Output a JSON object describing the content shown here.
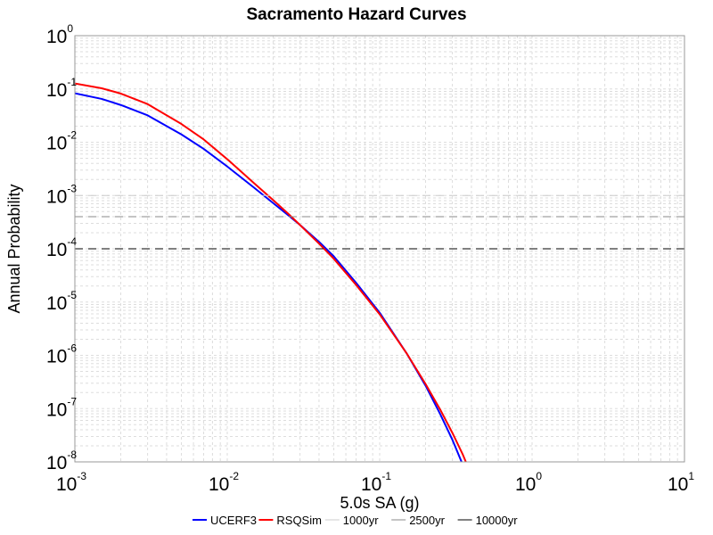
{
  "chart_data": {
    "type": "line",
    "title": "Sacramento Hazard Curves",
    "xlabel": "5.0s SA (g)",
    "ylabel": "Annual Probability",
    "x_scale": "log",
    "y_scale": "log",
    "xlim": [
      0.001,
      10
    ],
    "ylim": [
      1e-08,
      1
    ],
    "grid": true,
    "legend_position": "bottom",
    "x_ticks": [
      {
        "base": "10",
        "exp": "-3",
        "value": 0.001
      },
      {
        "base": "10",
        "exp": "-2",
        "value": 0.01
      },
      {
        "base": "10",
        "exp": "-1",
        "value": 0.1
      },
      {
        "base": "10",
        "exp": "0",
        "value": 1
      },
      {
        "base": "10",
        "exp": "1",
        "value": 10
      }
    ],
    "y_ticks": [
      {
        "base": "10",
        "exp": "0",
        "value": 1
      },
      {
        "base": "10",
        "exp": "-1",
        "value": 0.1
      },
      {
        "base": "10",
        "exp": "-2",
        "value": 0.01
      },
      {
        "base": "10",
        "exp": "-3",
        "value": 0.001
      },
      {
        "base": "10",
        "exp": "-4",
        "value": 0.0001
      },
      {
        "base": "10",
        "exp": "-5",
        "value": 1e-05
      },
      {
        "base": "10",
        "exp": "-6",
        "value": 1e-06
      },
      {
        "base": "10",
        "exp": "-7",
        "value": 1e-07
      },
      {
        "base": "10",
        "exp": "-8",
        "value": 1e-08
      }
    ],
    "series": [
      {
        "name": "UCERF3",
        "color": "#0000ff",
        "style": "solid",
        "x": [
          0.001,
          0.0015,
          0.002,
          0.003,
          0.005,
          0.007,
          0.01,
          0.015,
          0.02,
          0.025,
          0.03,
          0.04,
          0.05,
          0.07,
          0.1,
          0.15,
          0.2,
          0.25,
          0.3,
          0.35
        ],
        "y": [
          0.083,
          0.065,
          0.05,
          0.032,
          0.014,
          0.0075,
          0.0035,
          0.0014,
          0.00072,
          0.00043,
          0.00028,
          0.000135,
          7.2e-05,
          2.3e-05,
          6.3e-06,
          1.1e-06,
          2.7e-07,
          7.8e-08,
          2.6e-08,
          9e-09
        ]
      },
      {
        "name": "RSQSim",
        "color": "#ff0000",
        "style": "solid",
        "x": [
          0.001,
          0.0015,
          0.002,
          0.003,
          0.005,
          0.007,
          0.01,
          0.015,
          0.02,
          0.025,
          0.03,
          0.04,
          0.05,
          0.07,
          0.1,
          0.15,
          0.2,
          0.25,
          0.3,
          0.35,
          0.38
        ],
        "y": [
          0.127,
          0.103,
          0.082,
          0.052,
          0.022,
          0.0113,
          0.0048,
          0.0017,
          0.00082,
          0.00046,
          0.00028,
          0.000125,
          6.5e-05,
          2.1e-05,
          5.9e-06,
          1.1e-06,
          2.9e-07,
          9.5e-08,
          3.5e-08,
          1.4e-08,
          8e-09
        ]
      },
      {
        "name": "1000yr",
        "color": "#cccccc",
        "style": "dashed",
        "x": [
          0.001,
          10
        ],
        "y": [
          0.001,
          0.001
        ]
      },
      {
        "name": "2500yr",
        "color": "#888888",
        "style": "dashed",
        "x": [
          0.001,
          10
        ],
        "y": [
          0.0004,
          0.0004
        ]
      },
      {
        "name": "10000yr",
        "color": "#000000",
        "style": "dashed",
        "x": [
          0.001,
          10
        ],
        "y": [
          0.0001,
          0.0001
        ]
      }
    ]
  }
}
